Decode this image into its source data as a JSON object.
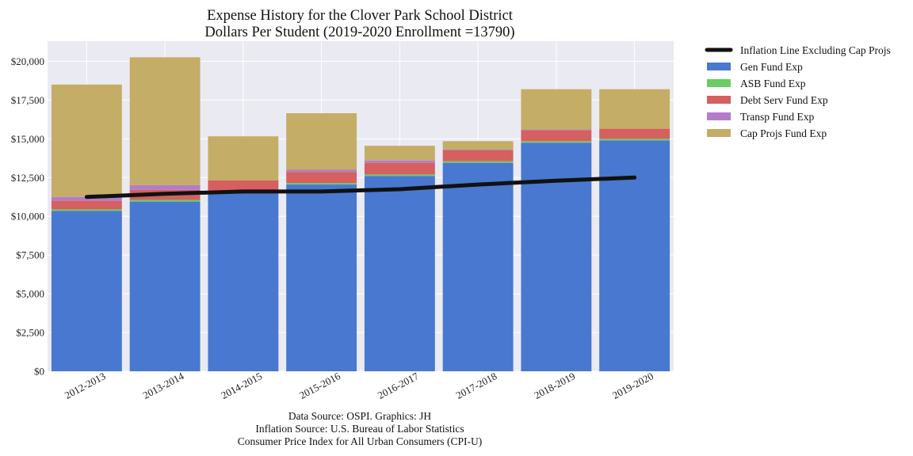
{
  "chart_data": {
    "type": "bar",
    "stacked": true,
    "title": [
      "Expense History for the Clover Park School District",
      "Dollars Per Student (2019-2020 Enrollment =13790)"
    ],
    "xlabel": "",
    "ylabel": "",
    "categories": [
      "2012-2013",
      "2013-2014",
      "2014-2015",
      "2015-2016",
      "2016-2017",
      "2017-2018",
      "2018-2019",
      "2019-2020"
    ],
    "ylim": [
      0,
      21300
    ],
    "yticks": [
      0,
      2500,
      5000,
      7500,
      10000,
      12500,
      15000,
      17500,
      20000
    ],
    "ytick_labels": [
      "$0",
      "$2,500",
      "$5,000",
      "$7,500",
      "$10,000",
      "$12,500",
      "$15,000",
      "$17,500",
      "$20,000"
    ],
    "grid": true,
    "legend_position": "outside-right",
    "series": [
      {
        "name": "Gen Fund Exp",
        "color": "#4878cf",
        "values": [
          10350,
          10950,
          11500,
          12050,
          12600,
          13450,
          14750,
          14900
        ]
      },
      {
        "name": "ASB Fund Exp",
        "color": "#6acc65",
        "values": [
          100,
          110,
          110,
          100,
          100,
          100,
          100,
          100
        ]
      },
      {
        "name": "Debt Serv Fund Exp",
        "color": "#d65f5f",
        "values": [
          550,
          650,
          700,
          700,
          750,
          700,
          700,
          650
        ]
      },
      {
        "name": "Transp Fund Exp",
        "color": "#b47cc7",
        "values": [
          250,
          300,
          0,
          150,
          150,
          50,
          50,
          0
        ]
      },
      {
        "name": "Cap Projs Fund Exp",
        "color": "#c4ad66",
        "values": [
          7250,
          8250,
          2850,
          3650,
          950,
          550,
          2600,
          2550
        ]
      }
    ],
    "line": {
      "name": "Inflation Line Excluding Cap Projs",
      "color": "#111111",
      "values": [
        11250,
        11450,
        11600,
        11600,
        11750,
        12050,
        12300,
        12500
      ]
    }
  },
  "notes": [
    "Data Source: OSPI. Graphics: JH",
    "Inflation Source: U.S. Bureau of Labor Statistics",
    "Consumer Price Index for All Urban Consumers (CPI-U)"
  ]
}
